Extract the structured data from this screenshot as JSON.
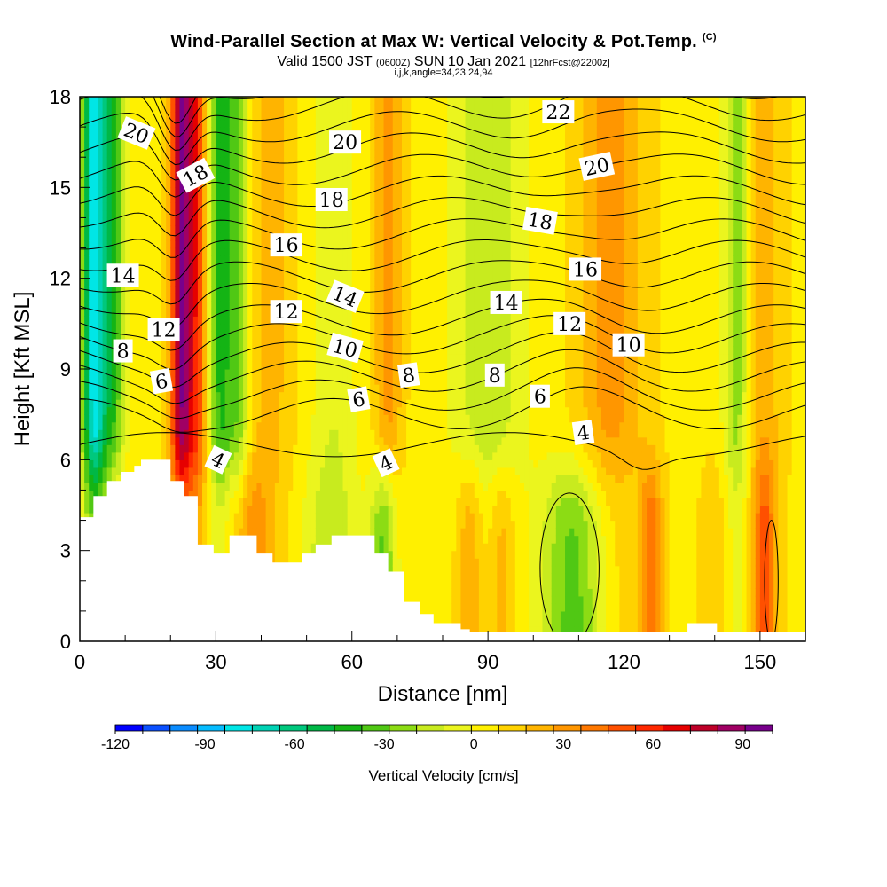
{
  "title": {
    "main": "Wind-Parallel Section at Max W: Vertical Velocity & Pot.Temp.",
    "corner": "(C)",
    "valid_prefix": "Valid 1500 JST",
    "valid_utc": "(0600Z)",
    "valid_date": "SUN 10 Jan 2021",
    "forecast": "[12hrFcst@2200z]",
    "indices": "i,j,k,angle=34,23,24,94"
  },
  "chart_data": {
    "type": "heatmap",
    "xlabel": "Distance [nm]",
    "ylabel": "Height [Kft MSL]",
    "xlim": [
      0,
      160
    ],
    "ylim": [
      0,
      18
    ],
    "x_ticks": [
      0,
      30,
      60,
      90,
      120,
      150
    ],
    "y_ticks": [
      0,
      3,
      6,
      9,
      12,
      15,
      18
    ],
    "colorbar": {
      "title": "Vertical Velocity [cm/s]",
      "range": [
        -120,
        100
      ],
      "ticks": [
        -120,
        -90,
        -60,
        -30,
        0,
        30,
        60,
        90
      ],
      "colors": [
        "#0000ff",
        "#0a50ff",
        "#0a8cff",
        "#05bcff",
        "#00e6e6",
        "#00d2b4",
        "#00c87d",
        "#00b846",
        "#14b414",
        "#50c814",
        "#8cdc14",
        "#c8eb1e",
        "#ebf51e",
        "#fff000",
        "#ffd200",
        "#ffb400",
        "#ff9600",
        "#ff7800",
        "#ff5000",
        "#ff2800",
        "#e60000",
        "#be0028",
        "#a00064",
        "#78008c"
      ]
    },
    "vertical_velocity_features": [
      {
        "x": 3,
        "w": 2.5,
        "value": -80
      },
      {
        "x": 7,
        "w": 3,
        "value": -45
      },
      {
        "x": 22.5,
        "w": 2.5,
        "value": 85
      },
      {
        "x": 26,
        "w": 2,
        "value": 40
      },
      {
        "x": 31,
        "w": 2.5,
        "value": -45
      },
      {
        "x": 35,
        "w": 2.5,
        "value": -35
      },
      {
        "x": 42,
        "w": 5,
        "value": 15
      },
      {
        "x": 56,
        "w": 5,
        "value": -15
      },
      {
        "x": 68,
        "w": 3,
        "value": 25
      },
      {
        "x": 90,
        "w": 8,
        "value": -25
      },
      {
        "x": 117,
        "w": 7,
        "value": 25
      },
      {
        "x": 145,
        "w": 3,
        "value": -35
      },
      {
        "x": 150,
        "w": 5,
        "value": 18
      }
    ],
    "lower_features": [
      {
        "x": 8,
        "w": 4,
        "value": 18
      },
      {
        "x": 14,
        "w": 5,
        "value": 0
      },
      {
        "x": 37,
        "w": 5,
        "value": 30
      },
      {
        "x": 55,
        "w": 6,
        "value": -20
      },
      {
        "x": 67,
        "w": 3,
        "value": -45
      },
      {
        "x": 86,
        "w": 3,
        "value": 25
      },
      {
        "x": 93,
        "w": 3,
        "value": 22
      },
      {
        "x": 109,
        "w": 7,
        "value": -40
      },
      {
        "x": 126,
        "w": 2.5,
        "value": 38
      },
      {
        "x": 140,
        "w": 3,
        "value": 12
      },
      {
        "x": 151,
        "w": 2.5,
        "value": 40
      }
    ],
    "potential_temperature_contour_levels": [
      4,
      5,
      6,
      7,
      8,
      9,
      10,
      11,
      12,
      13,
      14,
      15,
      16,
      17,
      18,
      19,
      20,
      21,
      22
    ],
    "potential_temperature_labels": [
      {
        "text": "20",
        "x": 12.5,
        "y": 16.8,
        "angle": 22
      },
      {
        "text": "18",
        "x": 25.5,
        "y": 15.4,
        "angle": -28
      },
      {
        "text": "14",
        "x": 9.5,
        "y": 12.1,
        "angle": 0
      },
      {
        "text": "12",
        "x": 18.5,
        "y": 10.3,
        "angle": 0
      },
      {
        "text": "8",
        "x": 9.5,
        "y": 9.6,
        "angle": 0
      },
      {
        "text": "6",
        "x": 18,
        "y": 8.6,
        "angle": -10
      },
      {
        "text": "4",
        "x": 30.5,
        "y": 6.0,
        "angle": 25
      },
      {
        "text": "20",
        "x": 58.5,
        "y": 16.5,
        "angle": 0
      },
      {
        "text": "18",
        "x": 55.5,
        "y": 14.6,
        "angle": 0
      },
      {
        "text": "16",
        "x": 45.5,
        "y": 13.1,
        "angle": 0
      },
      {
        "text": "14",
        "x": 58.5,
        "y": 11.4,
        "angle": 22
      },
      {
        "text": "12",
        "x": 45.5,
        "y": 10.9,
        "angle": 0
      },
      {
        "text": "10",
        "x": 58.5,
        "y": 9.7,
        "angle": 15
      },
      {
        "text": "8",
        "x": 72.5,
        "y": 8.8,
        "angle": -8
      },
      {
        "text": "6",
        "x": 61.5,
        "y": 8.0,
        "angle": -10
      },
      {
        "text": "4",
        "x": 67.5,
        "y": 5.9,
        "angle": -25
      },
      {
        "text": "22",
        "x": 105.5,
        "y": 17.5,
        "angle": 0
      },
      {
        "text": "20",
        "x": 114,
        "y": 15.7,
        "angle": -12
      },
      {
        "text": "18",
        "x": 101.5,
        "y": 13.9,
        "angle": 10
      },
      {
        "text": "16",
        "x": 111.5,
        "y": 12.3,
        "angle": 0
      },
      {
        "text": "14",
        "x": 94,
        "y": 11.2,
        "angle": 0
      },
      {
        "text": "12",
        "x": 108,
        "y": 10.5,
        "angle": 0
      },
      {
        "text": "10",
        "x": 121,
        "y": 9.8,
        "angle": 0
      },
      {
        "text": "8",
        "x": 91.5,
        "y": 8.8,
        "angle": 0
      },
      {
        "text": "6",
        "x": 101.5,
        "y": 8.1,
        "angle": 0
      },
      {
        "text": "4",
        "x": 111,
        "y": 6.9,
        "angle": -8
      }
    ],
    "terrain_height_kft": [
      [
        0,
        4.1
      ],
      [
        3,
        4.8
      ],
      [
        6,
        5.3
      ],
      [
        9,
        5.6
      ],
      [
        12,
        5.8
      ],
      [
        13.5,
        6.0
      ],
      [
        18.5,
        6.0
      ],
      [
        20,
        5.3
      ],
      [
        23,
        4.8
      ],
      [
        26,
        3.2
      ],
      [
        29.5,
        2.9
      ],
      [
        33,
        3.5
      ],
      [
        39,
        2.9
      ],
      [
        42.5,
        2.6
      ],
      [
        49,
        2.9
      ],
      [
        52,
        3.2
      ],
      [
        55.5,
        3.5
      ],
      [
        65,
        2.9
      ],
      [
        68,
        2.3
      ],
      [
        71.5,
        1.3
      ],
      [
        75,
        0.9
      ],
      [
        78,
        0.6
      ],
      [
        84,
        0.4
      ],
      [
        86,
        0.3
      ],
      [
        134,
        0.6
      ],
      [
        140.5,
        0.3
      ],
      [
        158,
        0.3
      ]
    ]
  }
}
